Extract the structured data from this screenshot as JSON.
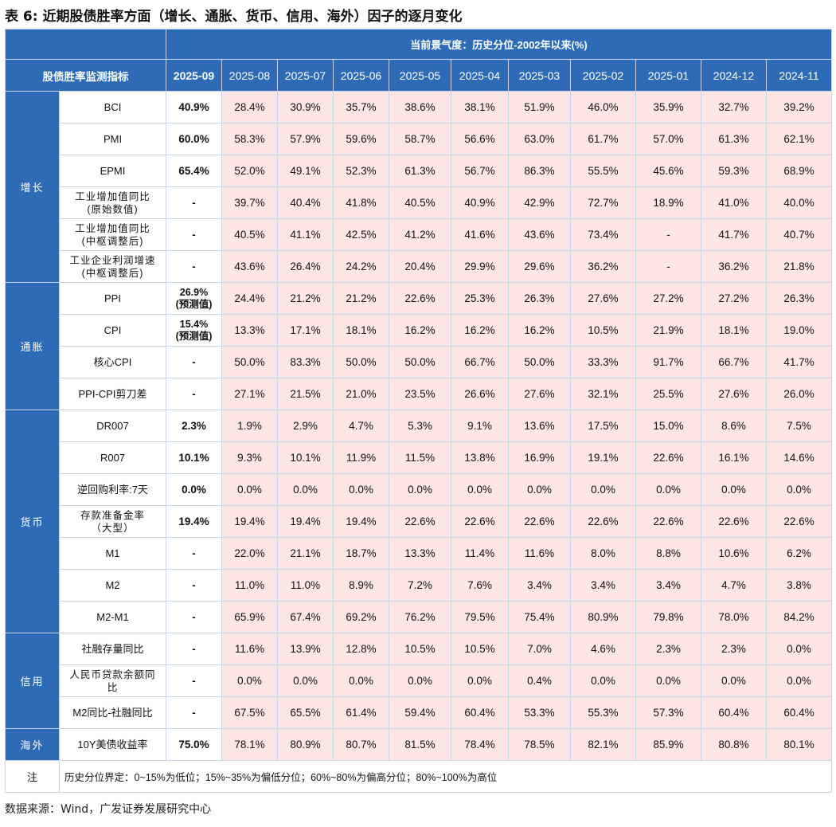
{
  "title": "表 6:  近期股债胜率方面（增长、通胀、货币、信用、海外）因子的逐月变化",
  "header": {
    "top_label": "当前景气度：历史分位-2002年以来(%)",
    "indicator_label": "股债胜率监测指标",
    "current_month": "2025-09",
    "months": [
      "2025-08",
      "2025-07",
      "2025-06",
      "2025-05",
      "2025-04",
      "2025-03",
      "2025-02",
      "2025-01",
      "2024-12",
      "2024-11"
    ]
  },
  "categories": {
    "growth": "增长",
    "inflation": "通胀",
    "money": "货币",
    "credit": "信用",
    "overseas": "海外"
  },
  "rows": [
    {
      "name": "BCI",
      "current": "40.9%",
      "values": [
        "28.4%",
        "30.9%",
        "35.7%",
        "38.6%",
        "38.1%",
        "51.9%",
        "46.0%",
        "35.9%",
        "32.7%",
        "39.2%"
      ]
    },
    {
      "name": "PMI",
      "current": "60.0%",
      "values": [
        "58.3%",
        "57.9%",
        "59.6%",
        "58.7%",
        "56.6%",
        "63.0%",
        "61.7%",
        "57.0%",
        "61.3%",
        "62.1%"
      ]
    },
    {
      "name": "EPMI",
      "current": "65.4%",
      "values": [
        "52.0%",
        "49.1%",
        "52.3%",
        "61.3%",
        "56.7%",
        "86.3%",
        "55.5%",
        "45.6%",
        "59.3%",
        "68.9%"
      ]
    },
    {
      "name_l1": "工业增加值同比",
      "name_l2": "(原始数值)",
      "current": "-",
      "values": [
        "39.7%",
        "40.4%",
        "41.8%",
        "40.5%",
        "40.9%",
        "42.9%",
        "72.7%",
        "18.9%",
        "41.0%",
        "40.0%"
      ]
    },
    {
      "name_l1": "工业增加值同比",
      "name_l2": "(中枢调整后)",
      "current": "-",
      "values": [
        "40.5%",
        "41.1%",
        "42.5%",
        "41.2%",
        "41.6%",
        "43.6%",
        "73.4%",
        "-",
        "41.7%",
        "40.7%"
      ]
    },
    {
      "name_l1": "工业企业利润增速",
      "name_l2": "(中枢调整后)",
      "current": "-",
      "values": [
        "43.6%",
        "26.4%",
        "24.2%",
        "20.4%",
        "29.9%",
        "29.6%",
        "36.2%",
        "-",
        "36.2%",
        "21.8%"
      ]
    },
    {
      "name": "PPI",
      "current_l1": "26.9%",
      "current_l2": "(预测值)",
      "values": [
        "24.4%",
        "21.2%",
        "21.2%",
        "22.6%",
        "25.3%",
        "26.3%",
        "27.6%",
        "27.2%",
        "27.2%",
        "26.3%"
      ]
    },
    {
      "name": "CPI",
      "current_l1": "15.4%",
      "current_l2": "(预测值)",
      "values": [
        "13.3%",
        "17.1%",
        "18.1%",
        "16.2%",
        "16.2%",
        "16.2%",
        "10.5%",
        "21.9%",
        "18.1%",
        "19.0%"
      ]
    },
    {
      "name": "核心CPI",
      "current": "-",
      "values": [
        "50.0%",
        "83.3%",
        "50.0%",
        "50.0%",
        "66.7%",
        "50.0%",
        "33.3%",
        "91.7%",
        "66.7%",
        "41.7%"
      ]
    },
    {
      "name": "PPI-CPI剪刀差",
      "current": "-",
      "values": [
        "27.1%",
        "21.5%",
        "21.0%",
        "23.5%",
        "26.6%",
        "27.6%",
        "32.1%",
        "25.5%",
        "27.6%",
        "26.0%"
      ]
    },
    {
      "name": "DR007",
      "current": "2.3%",
      "values": [
        "1.9%",
        "2.9%",
        "4.7%",
        "5.3%",
        "9.1%",
        "13.6%",
        "17.5%",
        "15.0%",
        "8.6%",
        "7.5%"
      ]
    },
    {
      "name": "R007",
      "current": "10.1%",
      "values": [
        "9.3%",
        "10.1%",
        "11.9%",
        "11.5%",
        "13.8%",
        "16.9%",
        "19.1%",
        "22.6%",
        "16.1%",
        "14.6%"
      ]
    },
    {
      "name": "逆回购利率:7天",
      "current": "0.0%",
      "values": [
        "0.0%",
        "0.0%",
        "0.0%",
        "0.0%",
        "0.0%",
        "0.0%",
        "0.0%",
        "0.0%",
        "0.0%",
        "0.0%"
      ]
    },
    {
      "name_l1": "存款准备金率",
      "name_l2": "（大型）",
      "current": "19.4%",
      "values": [
        "19.4%",
        "19.4%",
        "19.4%",
        "22.6%",
        "22.6%",
        "22.6%",
        "22.6%",
        "22.6%",
        "22.6%",
        "22.6%"
      ]
    },
    {
      "name": "M1",
      "current": "-",
      "values": [
        "22.0%",
        "21.1%",
        "18.7%",
        "13.3%",
        "11.4%",
        "11.6%",
        "8.0%",
        "8.8%",
        "10.6%",
        "6.2%"
      ]
    },
    {
      "name": "M2",
      "current": "-",
      "values": [
        "11.0%",
        "11.0%",
        "8.9%",
        "7.2%",
        "7.6%",
        "3.4%",
        "3.4%",
        "3.4%",
        "4.7%",
        "3.8%"
      ]
    },
    {
      "name": "M2-M1",
      "current": "-",
      "values": [
        "65.9%",
        "67.4%",
        "69.2%",
        "76.2%",
        "79.5%",
        "75.4%",
        "80.9%",
        "79.8%",
        "78.0%",
        "84.2%"
      ]
    },
    {
      "name": "社融存量同比",
      "current": "-",
      "values": [
        "11.6%",
        "13.9%",
        "12.8%",
        "10.5%",
        "10.5%",
        "7.0%",
        "4.6%",
        "2.3%",
        "2.3%",
        "0.0%"
      ]
    },
    {
      "name_l1": "人民币贷款余额同",
      "name_l2": "比",
      "current": "-",
      "values": [
        "0.0%",
        "0.0%",
        "0.0%",
        "0.0%",
        "0.0%",
        "0.4%",
        "0.0%",
        "0.0%",
        "0.0%",
        "0.0%"
      ]
    },
    {
      "name": "M2同比-社融同比",
      "current": "-",
      "values": [
        "67.5%",
        "65.5%",
        "61.4%",
        "59.4%",
        "60.4%",
        "53.3%",
        "55.3%",
        "57.3%",
        "60.4%",
        "60.4%"
      ]
    },
    {
      "name": "10Y美债收益率",
      "current": "75.0%",
      "values": [
        "78.1%",
        "80.9%",
        "80.7%",
        "81.5%",
        "78.4%",
        "78.5%",
        "82.1%",
        "85.9%",
        "80.8%",
        "80.1%"
      ]
    }
  ],
  "note": {
    "label": "注",
    "text": "历史分位界定：0~15%为低位；15%~35%为偏低分位；60%~80%为偏高分位；80%~100%为高位"
  },
  "source": "数据来源：Wind，广发证券发展研究中心"
}
